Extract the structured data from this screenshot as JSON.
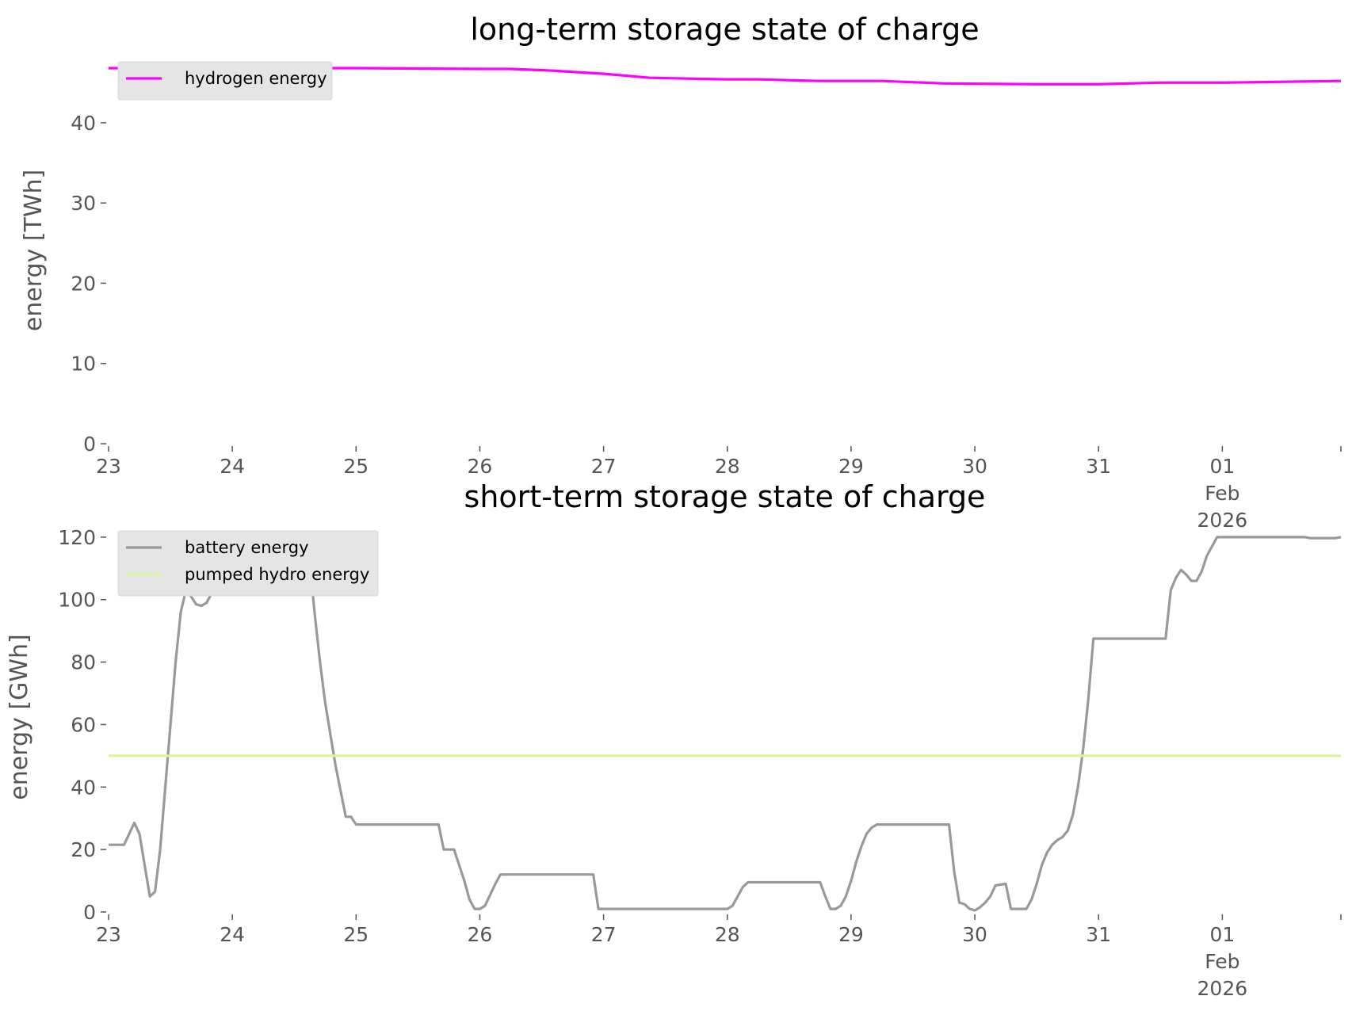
{
  "chart_data": [
    {
      "type": "line",
      "title": "long-term storage state of charge",
      "xlabel": "",
      "ylabel": "energy [TWh]",
      "ylim": [
        0,
        47
      ],
      "yticks": [
        0,
        10,
        20,
        30,
        40
      ],
      "xlim": [
        "2026-01-23",
        "2026-02-01 23:00"
      ],
      "x_ticks": [
        {
          "date": "2026-01-23",
          "lines": [
            "23"
          ]
        },
        {
          "date": "2026-01-24",
          "lines": [
            "24"
          ]
        },
        {
          "date": "2026-01-25",
          "lines": [
            "25"
          ]
        },
        {
          "date": "2026-01-26",
          "lines": [
            "26"
          ]
        },
        {
          "date": "2026-01-27",
          "lines": [
            "27"
          ]
        },
        {
          "date": "2026-01-28",
          "lines": [
            "28"
          ]
        },
        {
          "date": "2026-01-29",
          "lines": [
            "29"
          ]
        },
        {
          "date": "2026-01-30",
          "lines": [
            "30"
          ]
        },
        {
          "date": "2026-01-31",
          "lines": [
            "31"
          ]
        },
        {
          "date": "2026-02-01",
          "lines": [
            "01",
            "Feb",
            "2026"
          ]
        }
      ],
      "grid": false,
      "legend_position": "upper-left",
      "series": [
        {
          "name": "hydrogen energy",
          "color": "#ff00ff",
          "points": [
            [
              "2026-01-23 00:00",
              46.8
            ],
            [
              "2026-01-24 00:00",
              46.8
            ],
            [
              "2026-01-25 00:00",
              46.8
            ],
            [
              "2026-01-25 12:00",
              46.75
            ],
            [
              "2026-01-26 00:00",
              46.7
            ],
            [
              "2026-01-26 06:00",
              46.7
            ],
            [
              "2026-01-26 14:00",
              46.5
            ],
            [
              "2026-01-27 00:00",
              46.1
            ],
            [
              "2026-01-27 09:00",
              45.6
            ],
            [
              "2026-01-28 00:00",
              45.4
            ],
            [
              "2026-01-28 06:00",
              45.4
            ],
            [
              "2026-01-28 18:00",
              45.2
            ],
            [
              "2026-01-29 06:00",
              45.2
            ],
            [
              "2026-01-29 18:00",
              44.9
            ],
            [
              "2026-01-30 12:00",
              44.8
            ],
            [
              "2026-01-31 00:00",
              44.8
            ],
            [
              "2026-01-31 12:00",
              45.0
            ],
            [
              "2026-02-01 00:00",
              45.0
            ],
            [
              "2026-02-01 23:00",
              45.2
            ]
          ]
        }
      ]
    },
    {
      "type": "line",
      "title": "short-term storage state of charge",
      "xlabel": "",
      "ylabel": "energy [GWh]",
      "ylim": [
        0,
        122
      ],
      "yticks": [
        0,
        20,
        40,
        60,
        80,
        100,
        120
      ],
      "xlim": [
        "2026-01-23",
        "2026-02-01 23:00"
      ],
      "x_ticks": [
        {
          "date": "2026-01-23",
          "lines": [
            "23"
          ]
        },
        {
          "date": "2026-01-24",
          "lines": [
            "24"
          ]
        },
        {
          "date": "2026-01-25",
          "lines": [
            "25"
          ]
        },
        {
          "date": "2026-01-26",
          "lines": [
            "26"
          ]
        },
        {
          "date": "2026-01-27",
          "lines": [
            "27"
          ]
        },
        {
          "date": "2026-01-28",
          "lines": [
            "28"
          ]
        },
        {
          "date": "2026-01-29",
          "lines": [
            "29"
          ]
        },
        {
          "date": "2026-01-30",
          "lines": [
            "30"
          ]
        },
        {
          "date": "2026-01-31",
          "lines": [
            "31"
          ]
        },
        {
          "date": "2026-02-01",
          "lines": [
            "01",
            "Feb",
            "2026"
          ]
        }
      ],
      "grid": false,
      "legend_position": "upper-left",
      "series": [
        {
          "name": "battery energy",
          "color": "#999999",
          "points": [
            [
              "2026-01-23 00:00",
              21.5
            ],
            [
              "2026-01-23 03:00",
              21.5
            ],
            [
              "2026-01-23 05:00",
              28.5
            ],
            [
              "2026-01-23 06:00",
              25
            ],
            [
              "2026-01-23 07:00",
              15
            ],
            [
              "2026-01-23 08:00",
              5
            ],
            [
              "2026-01-23 09:00",
              6.5
            ],
            [
              "2026-01-23 10:00",
              20
            ],
            [
              "2026-01-23 11:00",
              40
            ],
            [
              "2026-01-23 13:00",
              80
            ],
            [
              "2026-01-23 14:00",
              96
            ],
            [
              "2026-01-23 15:00",
              103
            ],
            [
              "2026-01-23 16:00",
              101
            ],
            [
              "2026-01-23 17:00",
              98.5
            ],
            [
              "2026-01-23 18:00",
              98
            ],
            [
              "2026-01-23 19:00",
              99
            ],
            [
              "2026-01-23 20:00",
              102
            ],
            [
              "2026-01-23 21:00",
              108
            ],
            [
              "2026-01-23 23:00",
              120
            ],
            [
              "2026-01-24 14:00",
              120
            ],
            [
              "2026-01-24 15:00",
              112
            ],
            [
              "2026-01-24 16:00",
              95
            ],
            [
              "2026-01-24 17:00",
              80
            ],
            [
              "2026-01-24 18:00",
              67
            ],
            [
              "2026-01-24 20:00",
              47
            ],
            [
              "2026-01-24 22:00",
              30.5
            ],
            [
              "2026-01-24 23:00",
              30.5
            ],
            [
              "2026-01-25 00:00",
              28
            ],
            [
              "2026-01-25 16:00",
              28
            ],
            [
              "2026-01-25 17:00",
              20
            ],
            [
              "2026-01-25 19:00",
              20
            ],
            [
              "2026-01-25 21:00",
              10
            ],
            [
              "2026-01-25 22:00",
              4
            ],
            [
              "2026-01-25 23:00",
              1
            ],
            [
              "2026-01-26 00:00",
              1
            ],
            [
              "2026-01-26 01:00",
              2
            ],
            [
              "2026-01-26 02:00",
              5.5
            ],
            [
              "2026-01-26 03:00",
              9
            ],
            [
              "2026-01-26 04:00",
              12
            ],
            [
              "2026-01-26 22:00",
              12
            ],
            [
              "2026-01-26 23:00",
              1
            ],
            [
              "2026-01-28 00:00",
              1
            ],
            [
              "2026-01-28 01:00",
              2
            ],
            [
              "2026-01-28 02:00",
              5
            ],
            [
              "2026-01-28 03:00",
              8
            ],
            [
              "2026-01-28 04:00",
              9.5
            ],
            [
              "2026-01-28 18:00",
              9.5
            ],
            [
              "2026-01-28 19:00",
              5
            ],
            [
              "2026-01-28 20:00",
              1
            ],
            [
              "2026-01-28 21:00",
              1
            ],
            [
              "2026-01-28 22:00",
              2
            ],
            [
              "2026-01-28 23:00",
              5
            ],
            [
              "2026-01-29 00:00",
              10
            ],
            [
              "2026-01-29 01:00",
              16
            ],
            [
              "2026-01-29 02:00",
              21
            ],
            [
              "2026-01-29 03:00",
              25
            ],
            [
              "2026-01-29 04:00",
              27
            ],
            [
              "2026-01-29 05:00",
              28
            ],
            [
              "2026-01-29 19:00",
              28
            ],
            [
              "2026-01-29 20:00",
              13
            ],
            [
              "2026-01-29 21:00",
              3
            ],
            [
              "2026-01-29 22:00",
              2.5
            ],
            [
              "2026-01-29 23:00",
              1
            ],
            [
              "2026-01-30 00:00",
              0.5
            ],
            [
              "2026-01-30 01:00",
              1.5
            ],
            [
              "2026-01-30 02:00",
              3
            ],
            [
              "2026-01-30 03:00",
              5
            ],
            [
              "2026-01-30 04:00",
              8.5
            ],
            [
              "2026-01-30 06:00",
              9
            ],
            [
              "2026-01-30 07:00",
              1
            ],
            [
              "2026-01-30 10:00",
              1
            ],
            [
              "2026-01-30 11:00",
              4
            ],
            [
              "2026-01-30 12:00",
              9
            ],
            [
              "2026-01-30 13:00",
              15
            ],
            [
              "2026-01-30 14:00",
              19
            ],
            [
              "2026-01-30 15:00",
              21.5
            ],
            [
              "2026-01-30 16:00",
              23
            ],
            [
              "2026-01-30 17:00",
              24
            ],
            [
              "2026-01-30 18:00",
              26
            ],
            [
              "2026-01-30 19:00",
              31
            ],
            [
              "2026-01-30 20:00",
              40
            ],
            [
              "2026-01-30 21:00",
              52
            ],
            [
              "2026-01-30 22:00",
              68
            ],
            [
              "2026-01-30 23:00",
              87.5
            ],
            [
              "2026-01-31 13:00",
              87.5
            ],
            [
              "2026-01-31 14:00",
              103
            ],
            [
              "2026-01-31 15:00",
              107
            ],
            [
              "2026-01-31 16:00",
              109.5
            ],
            [
              "2026-01-31 17:00",
              108
            ],
            [
              "2026-01-31 18:00",
              106
            ],
            [
              "2026-01-31 19:00",
              106
            ],
            [
              "2026-01-31 20:00",
              109
            ],
            [
              "2026-01-31 21:00",
              114
            ],
            [
              "2026-01-31 22:00",
              117
            ],
            [
              "2026-01-31 23:00",
              120
            ],
            [
              "2026-02-01 16:00",
              120
            ],
            [
              "2026-02-01 17:00",
              119.7
            ],
            [
              "2026-02-01 22:00",
              119.7
            ],
            [
              "2026-02-01 23:00",
              120
            ]
          ]
        },
        {
          "name": "pumped hydro energy",
          "color": "#d9f59a",
          "points": [
            [
              "2026-01-23 00:00",
              50
            ],
            [
              "2026-02-01 23:00",
              50
            ]
          ]
        }
      ]
    }
  ]
}
